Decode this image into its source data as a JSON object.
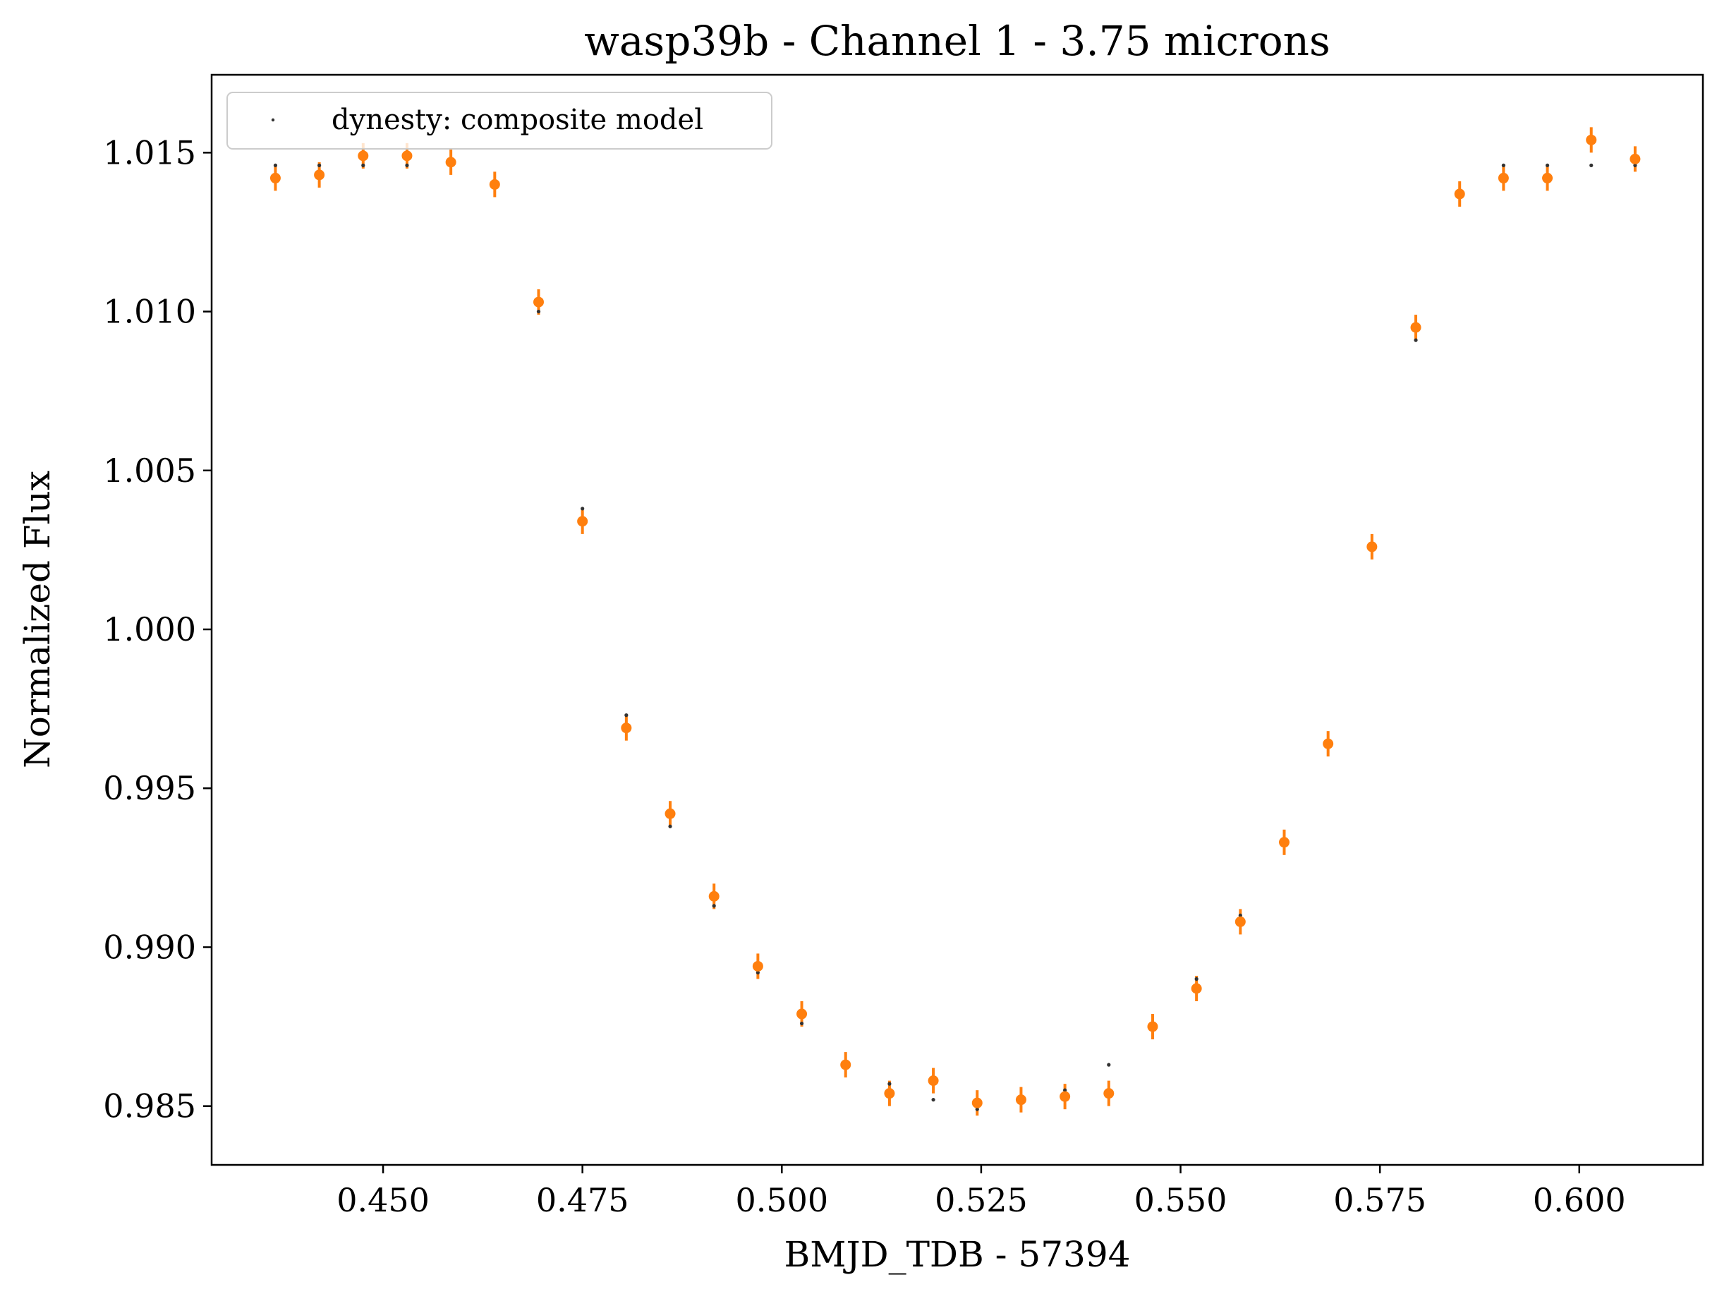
{
  "chart_data": {
    "type": "scatter",
    "title": "wasp39b - Channel 1 - 3.75 microns",
    "xlabel": "BMJD_TDB - 57394",
    "ylabel": "Normalized Flux",
    "xlim": [
      0.4285,
      0.6155
    ],
    "ylim": [
      0.98315,
      1.01745
    ],
    "xticks": [
      0.45,
      0.475,
      0.5,
      0.525,
      0.55,
      0.575,
      0.6
    ],
    "xtick_labels": [
      "0.450",
      "0.475",
      "0.500",
      "0.525",
      "0.550",
      "0.575",
      "0.600"
    ],
    "yticks": [
      0.985,
      0.99,
      0.995,
      1.0,
      1.005,
      1.01,
      1.015
    ],
    "ytick_labels": [
      "0.985",
      "0.990",
      "0.995",
      "1.000",
      "1.005",
      "1.010",
      "1.015"
    ],
    "grid": false,
    "legend": {
      "position": "top-left",
      "entries": [
        "dynesty: composite model"
      ]
    },
    "colors": {
      "data": "#ff7f0e",
      "model": "#333333"
    },
    "series": [
      {
        "name": "dynesty: composite model",
        "role": "model",
        "x": [
          0.4365,
          0.442,
          0.4475,
          0.453,
          0.4585,
          0.464,
          0.4695,
          0.475,
          0.4805,
          0.486,
          0.4915,
          0.497,
          0.5025,
          0.508,
          0.5135,
          0.519,
          0.5245,
          0.53,
          0.5355,
          0.541,
          0.5465,
          0.552,
          0.5575,
          0.563,
          0.5685,
          0.574,
          0.5795,
          0.585,
          0.5905,
          0.596,
          0.6015,
          0.607
        ],
        "y": [
          1.0146,
          1.0146,
          1.0146,
          1.0146,
          1.0146,
          1.0141,
          1.01,
          1.0038,
          0.9973,
          0.9938,
          0.9913,
          0.9892,
          0.9876,
          0.9864,
          0.9857,
          0.9852,
          0.9849,
          0.9851,
          0.9855,
          0.9863,
          0.9874,
          0.989,
          0.991,
          0.9933,
          0.9965,
          1.0025,
          1.0091,
          1.0137,
          1.0146,
          1.0146,
          1.0146,
          1.0146
        ]
      },
      {
        "role": "data",
        "x": [
          0.4365,
          0.442,
          0.4475,
          0.453,
          0.4585,
          0.464,
          0.4695,
          0.475,
          0.4805,
          0.486,
          0.4915,
          0.497,
          0.5025,
          0.508,
          0.5135,
          0.519,
          0.5245,
          0.53,
          0.5355,
          0.541,
          0.5465,
          0.552,
          0.5575,
          0.563,
          0.5685,
          0.574,
          0.5795,
          0.585,
          0.5905,
          0.596,
          0.6015,
          0.607
        ],
        "y": [
          1.0142,
          1.0143,
          1.0149,
          1.0149,
          1.0147,
          1.014,
          1.0103,
          1.0034,
          0.9969,
          0.9942,
          0.9916,
          0.9894,
          0.9879,
          0.9863,
          0.9854,
          0.9858,
          0.9851,
          0.9852,
          0.9853,
          0.9854,
          0.9875,
          0.9887,
          0.9908,
          0.9933,
          0.9964,
          1.0026,
          1.0095,
          1.0137,
          1.0142,
          1.0142,
          1.0154,
          1.0148
        ],
        "yerr": 0.0004
      }
    ]
  }
}
